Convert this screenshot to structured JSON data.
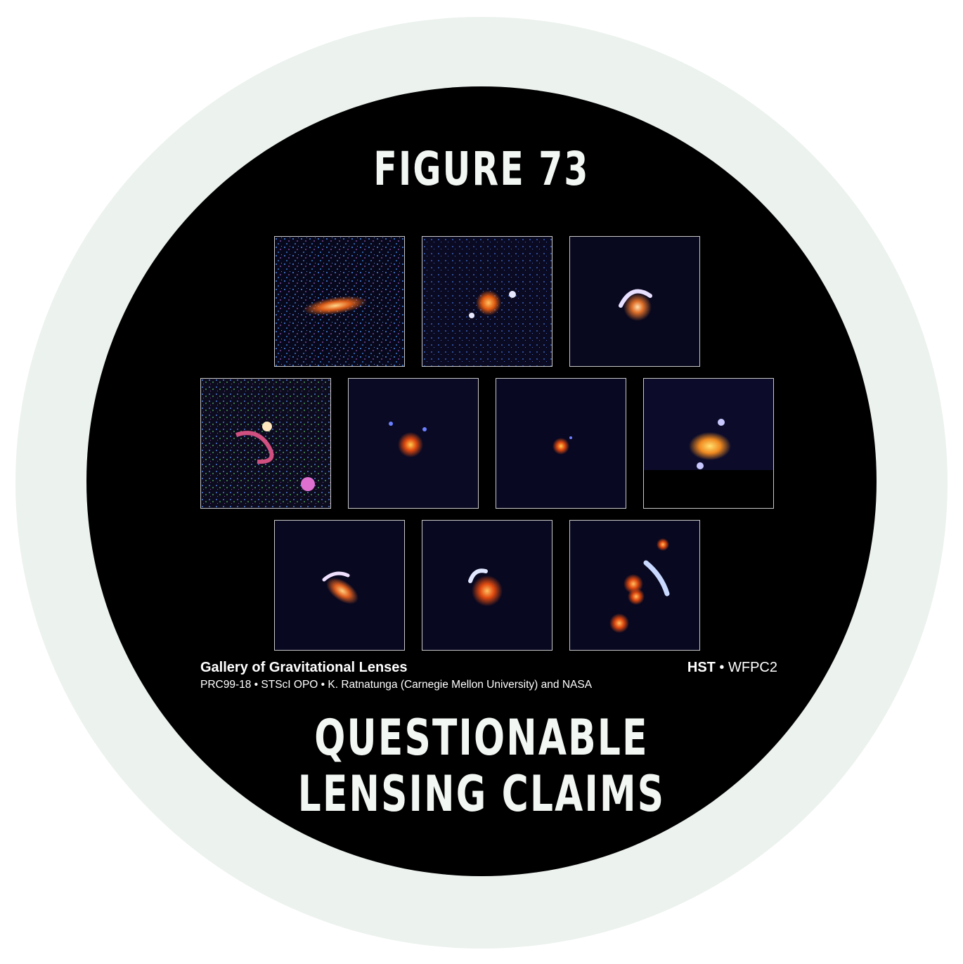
{
  "figure_label": "FIGURE 73",
  "gallery": {
    "title": "Gallery of Gravitational Lenses",
    "credit": "PRC99-18 • STScI OPO • K. Ratnatunga (Carnegie Mellon University) and NASA",
    "instrument_bold": "HST",
    "instrument_rest": " • WFPC2",
    "tile_count": 10
  },
  "headline": {
    "line1": "QUESTIONABLE",
    "line2": "LENSING CLAIMS"
  },
  "colors": {
    "ring": "#ecf2ee",
    "disc": "#000000",
    "text": "#f2f7f3"
  }
}
